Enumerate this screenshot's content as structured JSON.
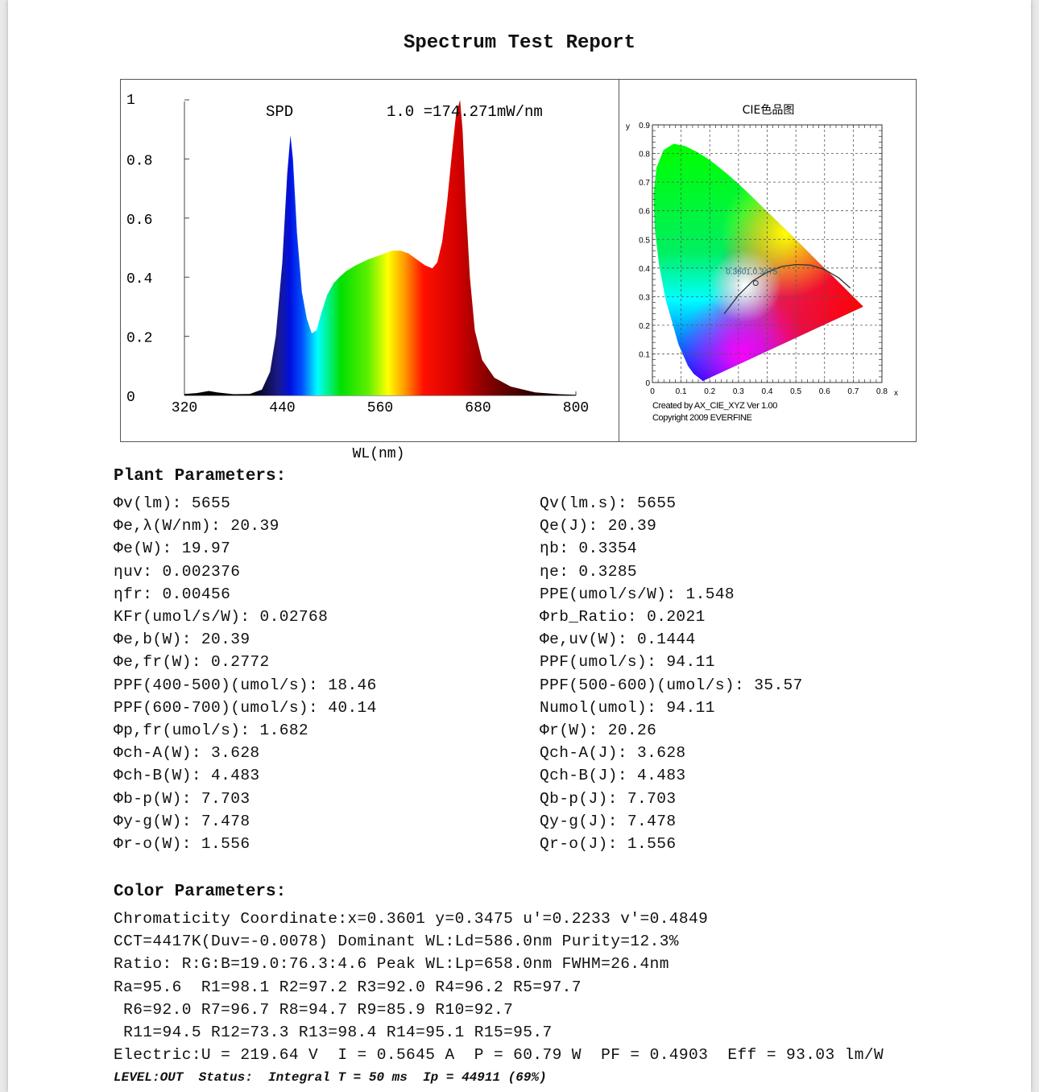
{
  "title": "Spectrum Test Report",
  "chart_data": [
    {
      "type": "area",
      "title": "SPD",
      "annotation": "1.0 =174.271mW/nm",
      "xlabel": "WL(nm)",
      "ylabel": "",
      "xlim": [
        320,
        800
      ],
      "ylim": [
        0,
        1
      ],
      "x_ticks": [
        "320",
        "440",
        "560",
        "680",
        "800"
      ],
      "y_ticks": [
        "0",
        "0.2",
        "0.4",
        "0.6",
        "0.8",
        "1"
      ],
      "fill": "spectral-gradient",
      "x": [
        320,
        335,
        350,
        360,
        380,
        400,
        415,
        425,
        432,
        440,
        446,
        450,
        453,
        458,
        464,
        470,
        476,
        482,
        488,
        495,
        503,
        510,
        518,
        530,
        545,
        560,
        575,
        585,
        595,
        605,
        615,
        624,
        630,
        636,
        642,
        648,
        653,
        658,
        661,
        665,
        670,
        676,
        685,
        700,
        720,
        750,
        780,
        800
      ],
      "y": [
        0.005,
        0.008,
        0.015,
        0.01,
        0.004,
        0.005,
        0.02,
        0.08,
        0.2,
        0.45,
        0.75,
        0.88,
        0.8,
        0.55,
        0.35,
        0.26,
        0.21,
        0.22,
        0.28,
        0.34,
        0.38,
        0.4,
        0.42,
        0.44,
        0.46,
        0.475,
        0.49,
        0.49,
        0.48,
        0.46,
        0.44,
        0.43,
        0.45,
        0.52,
        0.65,
        0.82,
        0.95,
        1.0,
        0.9,
        0.65,
        0.4,
        0.22,
        0.12,
        0.06,
        0.03,
        0.01,
        0.004,
        0.002
      ]
    },
    {
      "type": "scatter",
      "title": "CIE色品图",
      "xlabel": "x",
      "ylabel": "y",
      "xlim": [
        0,
        0.8
      ],
      "ylim": [
        0,
        0.9
      ],
      "x_ticks": [
        "0",
        "0.1",
        "0.2",
        "0.3",
        "0.4",
        "0.5",
        "0.6",
        "0.7",
        "0.8"
      ],
      "y_ticks": [
        "0",
        "0.1",
        "0.2",
        "0.3",
        "0.4",
        "0.5",
        "0.6",
        "0.7",
        "0.8",
        "0.9"
      ],
      "grid": true,
      "point": {
        "x": 0.3601,
        "y": 0.3475,
        "label": "0.3601,0.3475"
      },
      "planckian_locus": {
        "x": [
          0.25,
          0.3,
          0.35,
          0.4,
          0.45,
          0.5,
          0.55,
          0.6,
          0.65,
          0.69
        ],
        "y": [
          0.24,
          0.305,
          0.355,
          0.385,
          0.405,
          0.412,
          0.41,
          0.395,
          0.365,
          0.33
        ]
      },
      "credit_1": "Created by AX_CIE_XYZ Ver 1.00",
      "credit_2": "Copyright 2009 EVERFINE"
    }
  ],
  "plant": {
    "heading": "Plant Parameters:",
    "left": [
      "Φv(lm): 5655",
      "Φe,λ(W/nm): 20.39",
      "Φe(W): 19.97",
      "ηuv: 0.002376",
      "ηfr: 0.00456",
      "KFr(umol/s/W): 0.02768",
      "Φe,b(W): 20.39",
      "Φe,fr(W): 0.2772",
      "PPF(400-500)(umol/s): 18.46",
      "PPF(600-700)(umol/s): 40.14",
      "Φp,fr(umol/s): 1.682",
      "Φch-A(W): 3.628",
      "Φch-B(W): 4.483",
      "Φb-p(W): 7.703",
      "Φy-g(W): 7.478",
      "Φr-o(W): 1.556"
    ],
    "right": [
      "Qv(lm.s): 5655",
      "Qe(J): 20.39",
      "ηb: 0.3354",
      "ηe: 0.3285",
      "PPE(umol/s/W): 1.548",
      "Φrb_Ratio: 0.2021",
      "Φe,uv(W): 0.1444",
      "PPF(umol/s): 94.11",
      "PPF(500-600)(umol/s): 35.57",
      "Numol(umol): 94.11",
      "Φr(W): 20.26",
      "Qch-A(J): 3.628",
      "Qch-B(J): 4.483",
      "Qb-p(J): 7.703",
      "Qy-g(J): 7.478",
      "Qr-o(J): 1.556"
    ]
  },
  "color": {
    "heading": "Color Parameters:",
    "lines": [
      "Chromaticity Coordinate:x=0.3601 y=0.3475 u'=0.2233 v'=0.4849",
      "CCT=4417K(Duv=-0.0078) Dominant WL:Ld=586.0nm Purity=12.3%",
      "Ratio: R:G:B=19.0:76.3:4.6 Peak WL:Lp=658.0nm FWHM=26.4nm",
      "Ra=95.6  R1=98.1 R2=97.2 R3=92.0 R4=96.2 R5=97.7",
      " R6=92.0 R7=96.7 R8=94.7 R9=85.9 R10=92.7",
      " R11=94.5 R12=73.3 R13=98.4 R14=95.1 R15=95.7",
      "Electric:U = 219.64 V  I = 0.5645 A  P = 60.79 W  PF = 0.4903  Eff = 93.03 lm/W"
    ],
    "status": "LEVEL:OUT  Status:  Integral T = 50 ms  Ip = 44911 (69%)"
  }
}
